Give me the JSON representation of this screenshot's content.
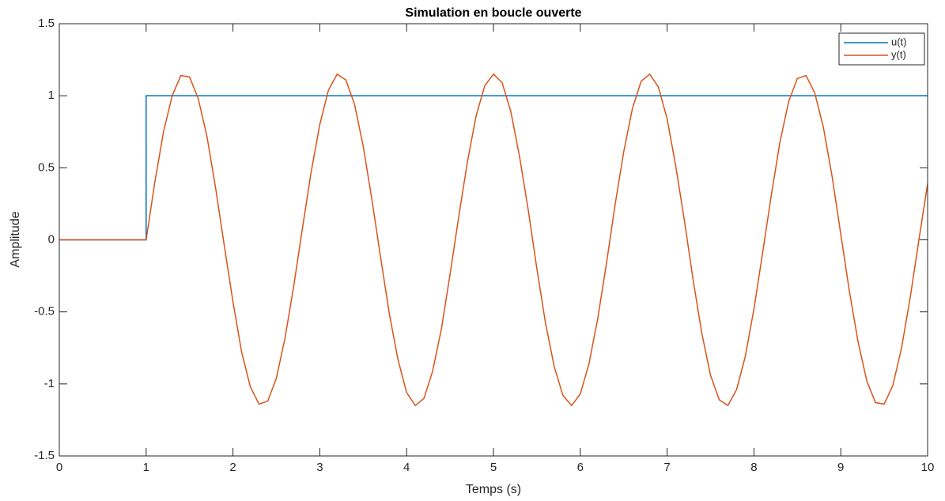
{
  "chart_data": {
    "type": "line",
    "title": "Simulation en boucle ouverte",
    "x_label": "Temps (s)",
    "y_label": "Amplitude",
    "xlim": [
      0,
      10
    ],
    "ylim": [
      -1.5,
      1.5
    ],
    "xticks": [
      0,
      1,
      2,
      3,
      4,
      5,
      6,
      7,
      8,
      9,
      10
    ],
    "yticks": [
      -1.5,
      -1,
      -0.5,
      0,
      0.5,
      1,
      1.5
    ],
    "legend": "upper right",
    "series": [
      {
        "name": "u(t)",
        "color": "#0072BD",
        "x": [
          0,
          1,
          1,
          10
        ],
        "values": [
          0,
          0,
          1,
          1
        ]
      },
      {
        "name": "y(t)",
        "color": "#D95319",
        "x": [
          0,
          1,
          1.1,
          1.2,
          1.3,
          1.4,
          1.5,
          1.6,
          1.7,
          1.8,
          1.9,
          2,
          2.1,
          2.2,
          2.3,
          2.4,
          2.5,
          2.6,
          2.7,
          2.8,
          2.9,
          3,
          3.1,
          3.2,
          3.3,
          3.4,
          3.5,
          3.6,
          3.7,
          3.8,
          3.9,
          4,
          4.1,
          4.2,
          4.3,
          4.4,
          4.5,
          4.6,
          4.7,
          4.8,
          4.9,
          5,
          5.1,
          5.2,
          5.3,
          5.4,
          5.5,
          5.6,
          5.7,
          5.8,
          5.9,
          6,
          6.1,
          6.2,
          6.3,
          6.4,
          6.5,
          6.6,
          6.7,
          6.8,
          6.9,
          7,
          7.1,
          7.2,
          7.3,
          7.4,
          7.5,
          7.6,
          7.7,
          7.8,
          7.9,
          8,
          8.1,
          8.2,
          8.3,
          8.4,
          8.5,
          8.6,
          8.7,
          8.8,
          8.9,
          9,
          9.1,
          9.2,
          9.3,
          9.4,
          9.5,
          9.6,
          9.7,
          9.8,
          9.9,
          10
        ],
        "values": [
          0,
          0,
          0.4,
          0.75,
          1.0,
          1.14,
          1.13,
          0.98,
          0.72,
          0.36,
          -0.04,
          -0.43,
          -0.78,
          -1.02,
          -1.14,
          -1.12,
          -0.96,
          -0.68,
          -0.32,
          0.08,
          0.47,
          0.8,
          1.04,
          1.15,
          1.11,
          0.94,
          0.65,
          0.28,
          -0.12,
          -0.51,
          -0.83,
          -1.06,
          -1.15,
          -1.1,
          -0.91,
          -0.62,
          -0.24,
          0.16,
          0.54,
          0.86,
          1.07,
          1.15,
          1.09,
          0.89,
          0.58,
          0.21,
          -0.2,
          -0.58,
          -0.88,
          -1.08,
          -1.15,
          -1.07,
          -0.86,
          -0.55,
          -0.17,
          0.24,
          0.61,
          0.91,
          1.1,
          1.15,
          1.06,
          0.84,
          0.51,
          0.13,
          -0.28,
          -0.65,
          -0.94,
          -1.11,
          -1.15,
          -1.04,
          -0.81,
          -0.48,
          -0.09,
          0.31,
          0.68,
          0.96,
          1.12,
          1.14,
          1.02,
          0.78,
          0.44,
          0.04,
          -0.36,
          -0.71,
          -0.98,
          -1.13,
          -1.14,
          -1.01,
          -0.75,
          -0.4,
          0,
          0.39
        ]
      }
    ]
  }
}
